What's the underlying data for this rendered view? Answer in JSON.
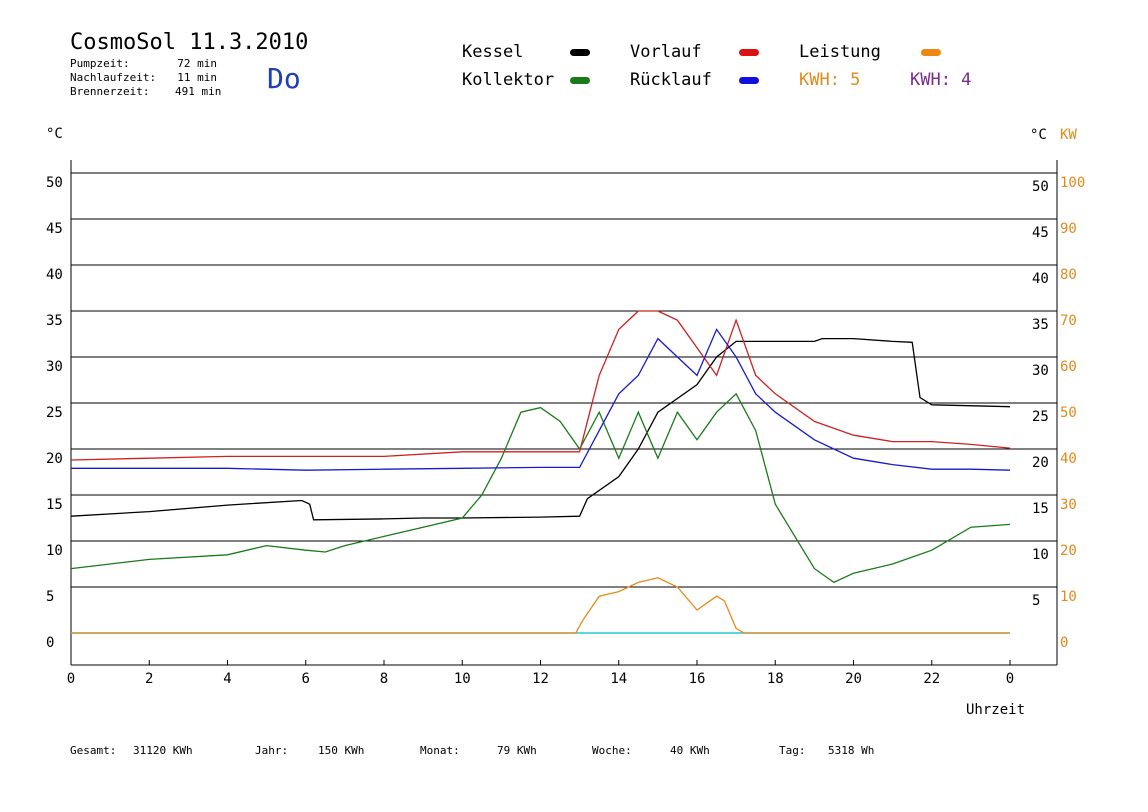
{
  "header": {
    "title": "CosmoSol 11.3.2010",
    "day": "Do",
    "stats": [
      {
        "label": "Pumpzeit:",
        "value": "72 min"
      },
      {
        "label": "Nachlaufzeit:",
        "value": "11 min"
      },
      {
        "label": "Brennerzeit:",
        "value": "491 min"
      }
    ]
  },
  "legend": {
    "kessel": "Kessel",
    "kollektor": "Kollektor",
    "vorlauf": "Vorlauf",
    "ruecklauf": "Rücklauf",
    "leistung": "Leistung",
    "kwh_orange": "KWH: 5",
    "kwh_purple": "KWH: 4"
  },
  "axes": {
    "left_unit": "°C",
    "right_unit": "°C",
    "kw_unit": "KW",
    "x_label": "Uhrzeit",
    "left_ticks": [
      "50",
      "45",
      "40",
      "35",
      "30",
      "25",
      "20",
      "15",
      "10",
      "5",
      "0"
    ],
    "right_ticks": [
      "50",
      "45",
      "40",
      "35",
      "30",
      "25",
      "20",
      "15",
      "10",
      "5"
    ],
    "kw_ticks": [
      "100",
      "90",
      "80",
      "70",
      "60",
      "50",
      "40",
      "30",
      "20",
      "10",
      "0"
    ],
    "x_ticks": [
      "0",
      "2",
      "4",
      "6",
      "8",
      "10",
      "12",
      "14",
      "16",
      "18",
      "20",
      "22",
      "0"
    ]
  },
  "footer": {
    "gesamt_label": "Gesamt:",
    "gesamt_value": "31120 KWh",
    "jahr_label": "Jahr:",
    "jahr_value": "150 KWh",
    "monat_label": "Monat:",
    "monat_value": "79 KWh",
    "woche_label": "Woche:",
    "woche_value": "40 KWh",
    "tag_label": "Tag:",
    "tag_value": "5318 Wh"
  },
  "colors": {
    "kessel": "#000000",
    "kollektor": "#1a7a1a",
    "vorlauf": "#cc2222",
    "ruecklauf": "#1a1acc",
    "leistung": "#e88a1a",
    "kwh_purple": "#7a2a8a",
    "pump": "#22cccc"
  },
  "chart_data": {
    "type": "line",
    "x_unit": "hour",
    "xlim": [
      0,
      24
    ],
    "ylim": [
      0,
      50
    ],
    "y2lim": [
      0,
      100
    ],
    "grid": true,
    "series": [
      {
        "name": "Kessel",
        "x": [
          0,
          2,
          4,
          5.9,
          6.1,
          6.2,
          8,
          9,
          10,
          12,
          13,
          13.2,
          14,
          14.5,
          15,
          16,
          16.5,
          17,
          19,
          19.2,
          20,
          21,
          21.5,
          21.7,
          22,
          24
        ],
        "values": [
          12.7,
          13.2,
          13.9,
          14.4,
          14,
          12.3,
          12.4,
          12.5,
          12.5,
          12.6,
          12.7,
          14.6,
          17,
          20,
          24,
          27,
          30,
          31.7,
          31.7,
          32,
          32,
          31.7,
          31.6,
          25.6,
          24.8,
          24.6
        ]
      },
      {
        "name": "Kollektor",
        "x": [
          0,
          2,
          4,
          5,
          6,
          6.5,
          7,
          8,
          9,
          10,
          10.5,
          11,
          11.5,
          12,
          12.5,
          13,
          13.5,
          14,
          14.5,
          15,
          15.5,
          16,
          16.5,
          17,
          17.5,
          18,
          19,
          19.5,
          20,
          21,
          22,
          23,
          24
        ],
        "values": [
          7,
          8,
          8.5,
          9.5,
          9,
          8.8,
          9.5,
          10.5,
          11.5,
          12.5,
          15,
          19,
          24,
          24.5,
          23,
          20,
          24,
          19,
          24,
          19,
          24,
          21,
          24,
          26,
          22,
          14,
          7,
          5.5,
          6.5,
          7.5,
          9,
          11.5,
          11.8
        ]
      },
      {
        "name": "Vorlauf",
        "x": [
          0,
          2,
          4,
          6,
          8,
          10,
          12,
          13,
          13.5,
          14,
          14.5,
          15,
          15.5,
          16,
          16.5,
          17,
          17.5,
          18,
          19,
          20,
          21,
          22,
          23,
          24
        ],
        "values": [
          18.8,
          19,
          19.2,
          19.2,
          19.2,
          19.7,
          19.7,
          19.7,
          28,
          33,
          35,
          35,
          34,
          31,
          28,
          34,
          28,
          26,
          23,
          21.5,
          20.8,
          20.8,
          20.5,
          20.1
        ]
      },
      {
        "name": "Rücklauf",
        "x": [
          0,
          2,
          4,
          6,
          8,
          10,
          12,
          13,
          13.5,
          14,
          14.5,
          15,
          15.5,
          16,
          16.5,
          17,
          17.5,
          18,
          19,
          20,
          21,
          22,
          23,
          24
        ],
        "values": [
          17.9,
          17.9,
          17.9,
          17.7,
          17.8,
          17.9,
          18,
          18,
          22,
          26,
          28,
          32,
          30,
          28,
          33,
          30,
          26,
          24,
          21,
          19,
          18.3,
          17.8,
          17.8,
          17.7
        ]
      },
      {
        "name": "Leistung",
        "axis": "KW",
        "x": [
          0,
          12.9,
          13.1,
          13.5,
          14,
          14.5,
          15,
          15.5,
          16,
          16.5,
          16.7,
          17,
          17.2,
          24
        ],
        "values": [
          0,
          0,
          3,
          8,
          9,
          11,
          12,
          10,
          5,
          8,
          7,
          1,
          0,
          0
        ]
      }
    ]
  }
}
